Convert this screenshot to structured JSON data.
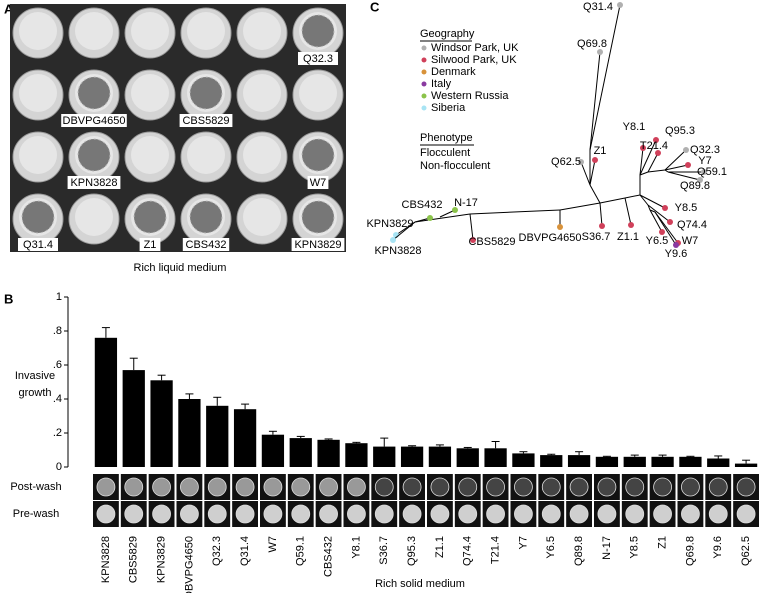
{
  "panel_a": {
    "label": "A",
    "caption": "Rich liquid medium",
    "wells": [
      "Q32.3",
      "DBVPG4650",
      "CBS5829",
      "KPN3828",
      "W7",
      "Q31.4",
      "Z1",
      "CBS432",
      "KPN3829"
    ]
  },
  "chart_data": {
    "type": "bar",
    "panel_label": "B",
    "y_label_lines": [
      "Invasive",
      "growth"
    ],
    "categories": [
      "KPN3828",
      "CBS5829",
      "KPN3829",
      "DBVPG4650",
      "Q32.3",
      "Q31.4",
      "W7",
      "Q59.1",
      "CBS432",
      "Y8.1",
      "S36.7",
      "Q95.3",
      "Z1.1",
      "Q74.4",
      "T21.4",
      "Y7",
      "Y6.5",
      "Q89.8",
      "N-17",
      "Y8.5",
      "Z1",
      "Q69.8",
      "Y9.6",
      "Q62.5"
    ],
    "category_colors": [
      "#8a2be2",
      "#8a2be2",
      "#8a2be2",
      "#8a2be2",
      "#8a2be2",
      "#8a2be2",
      "#8a2be2",
      "#000000",
      "#8a2be2",
      "#000000",
      "#000000",
      "#000000",
      "#000000",
      "#000000",
      "#000000",
      "#000000",
      "#000000",
      "#000000",
      "#000000",
      "#000000",
      "#000000",
      "#000000",
      "#000000",
      "#000000"
    ],
    "values": [
      0.76,
      0.57,
      0.51,
      0.4,
      0.36,
      0.34,
      0.19,
      0.17,
      0.16,
      0.14,
      0.12,
      0.12,
      0.12,
      0.11,
      0.11,
      0.08,
      0.07,
      0.07,
      0.06,
      0.06,
      0.06,
      0.06,
      0.05,
      0.02
    ],
    "errors": [
      0.06,
      0.07,
      0.03,
      0.03,
      0.05,
      0.03,
      0.02,
      0.01,
      0.005,
      0.005,
      0.05,
      0.005,
      0.01,
      0.005,
      0.04,
      0.01,
      0.005,
      0.02,
      0.003,
      0.01,
      0.01,
      0.003,
      0.015,
      0.02
    ],
    "color": "#000000",
    "ylim": [
      0,
      1
    ],
    "yticks": [
      0,
      {
        "value": 0.2,
        "label": ".2"
      },
      {
        "value": 0.4,
        "label": ".4"
      },
      {
        "value": 0.6,
        "label": ".6"
      },
      {
        "value": 0.8,
        "label": ".8"
      },
      1
    ],
    "row_labels": [
      "Post-wash",
      "Pre-wash"
    ],
    "x_label": "Rich solid medium"
  },
  "panel_c": {
    "label": "C",
    "geography_title": "Geography",
    "geography": [
      {
        "name": "Windsor Park, UK",
        "color": "#b0b0b0"
      },
      {
        "name": "Silwood Park, UK",
        "color": "#d0405a"
      },
      {
        "name": "Denmark",
        "color": "#d8923a"
      },
      {
        "name": "Italy",
        "color": "#8a3aa0"
      },
      {
        "name": "Western Russia",
        "color": "#8bc34a"
      },
      {
        "name": "Siberia",
        "color": "#a8e4f4"
      }
    ],
    "phenotype_title": "Phenotype",
    "phenotype": [
      {
        "name": "Flocculent",
        "color": "#8a2be2"
      },
      {
        "name": "Non-flocculent",
        "color": "#000000"
      }
    ],
    "nodes": [
      {
        "label": "Q31.4",
        "color": "#b0b0b0",
        "label_color": "#8a2be2"
      },
      {
        "label": "Q69.8",
        "color": "#b0b0b0",
        "label_color": "#000000"
      },
      {
        "label": "Y8.1",
        "color": "#d0405a",
        "label_color": "#000000"
      },
      {
        "label": "Q95.3",
        "color": "#d0405a",
        "label_color": "#000000"
      },
      {
        "label": "T21.4",
        "color": "#d0405a",
        "label_color": "#000000"
      },
      {
        "label": "Q32.3",
        "color": "#b0b0b0",
        "label_color": "#8a2be2"
      },
      {
        "label": "Y7",
        "color": "#d0405a",
        "label_color": "#000000"
      },
      {
        "label": "Q59.1",
        "color": "#b0b0b0",
        "label_color": "#000000"
      },
      {
        "label": "Q89.8",
        "color": "#b0b0b0",
        "label_color": "#000000"
      },
      {
        "label": "Z1",
        "color": "#d0405a",
        "label_color": "#000000"
      },
      {
        "label": "Q62.5",
        "color": "#b0b0b0",
        "label_color": "#000000"
      },
      {
        "label": "Y8.5",
        "color": "#d0405a",
        "label_color": "#000000"
      },
      {
        "label": "Q74.4",
        "color": "#d0405a",
        "label_color": "#000000"
      },
      {
        "label": "Y6.5",
        "color": "#d0405a",
        "label_color": "#000000"
      },
      {
        "label": "W7",
        "color": "#d0405a",
        "label_color": "#8a2be2"
      },
      {
        "label": "Y9.6",
        "color": "#8a3aa0",
        "label_color": "#000000"
      },
      {
        "label": "Z1.1",
        "color": "#d0405a",
        "label_color": "#000000"
      },
      {
        "label": "S36.7",
        "color": "#d0405a",
        "label_color": "#000000"
      },
      {
        "label": "DBVPG4650",
        "color": "#d8923a",
        "label_color": "#8a2be2"
      },
      {
        "label": "CBS5829",
        "color": "#d0405a",
        "label_color": "#8a2be2"
      },
      {
        "label": "N-17",
        "color": "#8bc34a",
        "label_color": "#000000"
      },
      {
        "label": "CBS432",
        "color": "#8bc34a",
        "label_color": "#8a2be2"
      },
      {
        "label": "KPN3829",
        "color": "#a8e4f4",
        "label_color": "#8a2be2"
      },
      {
        "label": "KPN3828",
        "color": "#a8e4f4",
        "label_color": "#8a2be2"
      }
    ]
  }
}
